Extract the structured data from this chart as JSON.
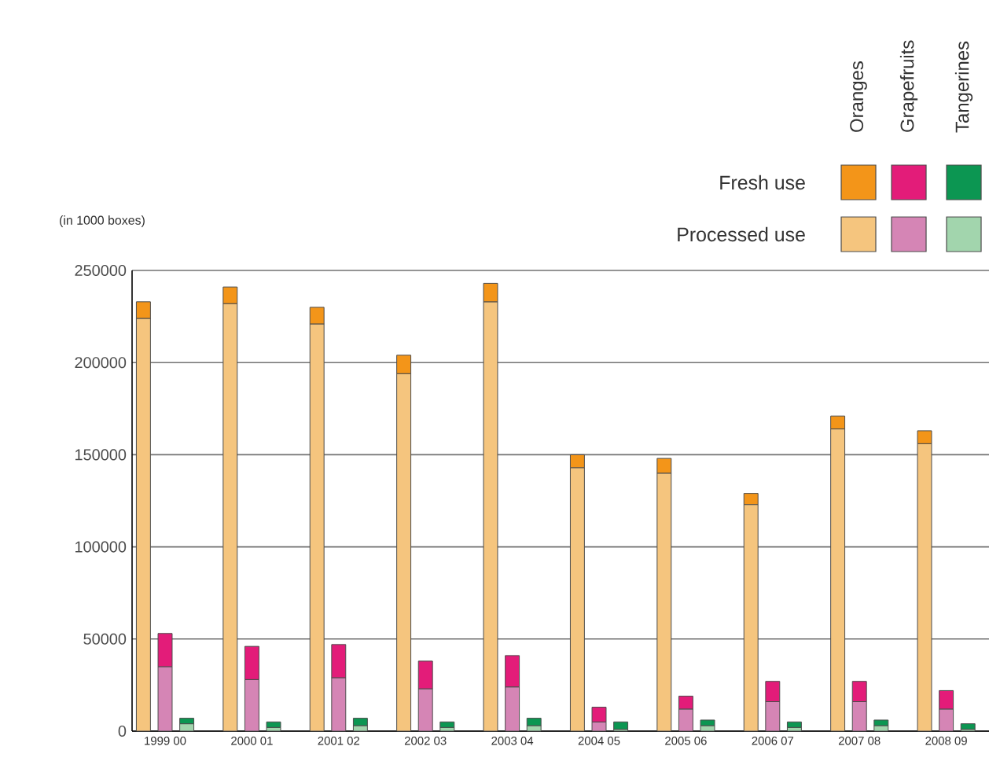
{
  "chart_data": {
    "type": "bar",
    "stacked": true,
    "ylabel": "(in 1000 boxes)",
    "categories": [
      null,
      "1999 00",
      null,
      null,
      null,
      "2000 01",
      null,
      null,
      null,
      "2001 02",
      null,
      null,
      null,
      "2002 03",
      null,
      null,
      null,
      "2003 04",
      null,
      null,
      null,
      "2004 05",
      null,
      null,
      null,
      "2005 06",
      null,
      null,
      null,
      "2006 07",
      null,
      null,
      null,
      "2007 08",
      null,
      null,
      null,
      "2008 09",
      null
    ],
    "annotations": [
      "Oranges",
      "Grapefruits",
      "Tangerines"
    ],
    "series": [
      {
        "name": "Processed use",
        "colors": [
          "#f5c57e",
          "#d585b5",
          "#a2d5ad",
          "#ffffff",
          "#f5c57e",
          "#d585b5",
          "#a2d5ad",
          "#ffffff",
          "#f5c57e",
          "#d585b5",
          "#a2d5ad",
          "#ffffff",
          "#f5c57e",
          "#d585b5",
          "#a2d5ad",
          "#ffffff",
          "#f5c57e",
          "#d585b5",
          "#a2d5ad",
          "#ffffff",
          "#f5c57e",
          "#d585b5",
          "#a2d5ad",
          "#ffffff",
          "#f5c57e",
          "#d585b5",
          "#a2d5ad",
          "#ffffff",
          "#f5c57e",
          "#d585b5",
          "#a2d5ad",
          "#ffffff",
          "#f5c57e",
          "#d585b5",
          "#a2d5ad",
          "#ffffff",
          "#f5c57e",
          "#d585b5",
          "#a2d5ad"
        ],
        "values": [
          224000,
          35000,
          4000,
          null,
          232000,
          28000,
          2000,
          null,
          221000,
          29000,
          3000,
          null,
          194000,
          23000,
          2000,
          null,
          233000,
          24000,
          3000,
          null,
          143000,
          5000,
          1000,
          null,
          140000,
          12000,
          3000,
          null,
          123000,
          16000,
          2000,
          null,
          164000,
          16000,
          3000,
          null,
          156000,
          12000,
          1000
        ]
      },
      {
        "name": "Fresh use",
        "colors": [
          "#f39519",
          "#e31c79",
          "#0c9652",
          "#ffffff",
          "#f39519",
          "#e31c79",
          "#0c9652",
          "#ffffff",
          "#f39519",
          "#e31c79",
          "#0c9652",
          "#ffffff",
          "#f39519",
          "#e31c79",
          "#0c9652",
          "#ffffff",
          "#f39519",
          "#e31c79",
          "#0c9652",
          "#ffffff",
          "#f39519",
          "#e31c79",
          "#0c9652",
          "#ffffff",
          "#f39519",
          "#e31c79",
          "#0c9652",
          "#ffffff",
          "#f39519",
          "#e31c79",
          "#0c9652",
          "#ffffff",
          "#f39519",
          "#e31c79",
          "#0c9652",
          "#ffffff",
          "#f39519",
          "#e31c79",
          "#0c9652"
        ],
        "values": [
          9000,
          18000,
          3000,
          null,
          9000,
          18000,
          3000,
          null,
          9000,
          18000,
          4000,
          null,
          10000,
          15000,
          3000,
          null,
          10000,
          17000,
          4000,
          null,
          7000,
          8000,
          4000,
          null,
          8000,
          7000,
          3000,
          null,
          6000,
          11000,
          3000,
          null,
          7000,
          11000,
          3000,
          null,
          7000,
          10000,
          3000
        ]
      }
    ],
    "ylim": [
      0,
      250000
    ],
    "yticks": [
      0,
      50000,
      100000,
      150000,
      200000,
      250000
    ],
    "grid": "y",
    "legend": "top right"
  }
}
